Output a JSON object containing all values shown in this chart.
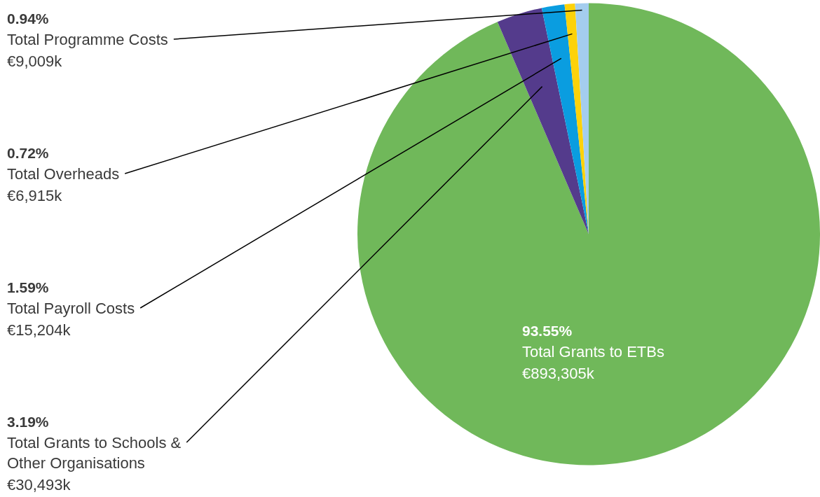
{
  "chart_data": {
    "type": "pie",
    "categories": [
      "Total Grants to ETBs",
      "Total Grants to Schools & Other Organisations",
      "Total Payroll Costs",
      "Total Overheads",
      "Total Programme Costs"
    ],
    "values": [
      893305,
      30493,
      15204,
      6915,
      9009
    ],
    "value_labels": [
      "€893,305k",
      "€30,493k",
      "€15,204k",
      "€6,915k",
      "€9,009k"
    ],
    "colors": [
      "#70b85a",
      "#543b8c",
      "#0a9de0",
      "#fdd20a",
      "#a4cdee"
    ],
    "annotations": [
      "93.55%",
      "3.19%",
      "1.59%",
      "0.72%",
      "0.94%"
    ],
    "legend": false
  }
}
